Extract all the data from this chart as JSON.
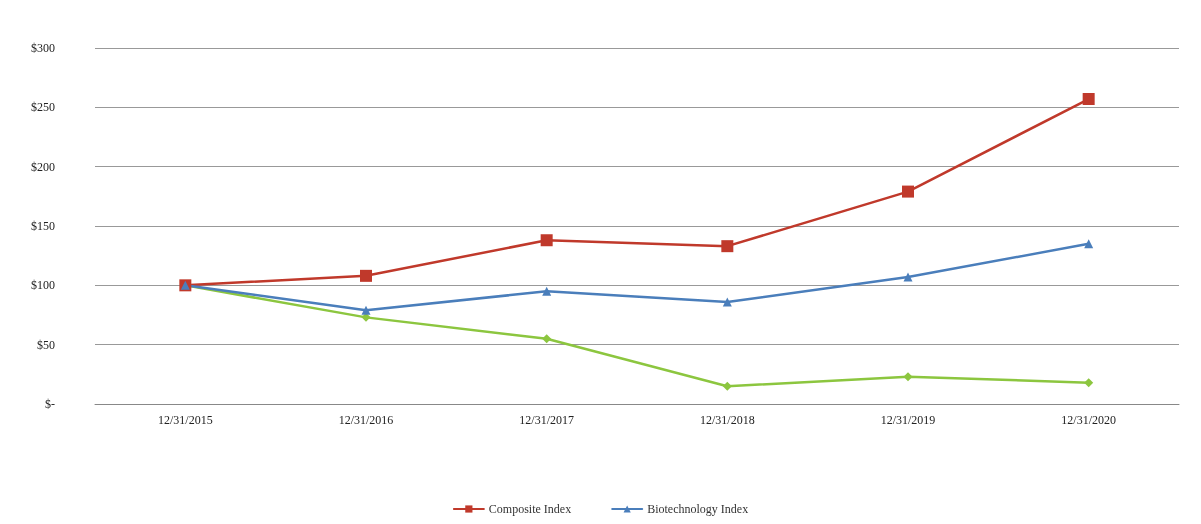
{
  "chart_data": {
    "type": "line",
    "categories": [
      "12/31/2015",
      "12/31/2016",
      "12/31/2017",
      "12/31/2018",
      "12/31/2019",
      "12/31/2020"
    ],
    "series": [
      {
        "color": "#8cc63f",
        "marker": "diamond",
        "values": [
          100,
          73,
          55,
          15,
          23,
          18
        ]
      },
      {
        "name": "Composite Index",
        "color": "#c0392b",
        "marker": "square",
        "values": [
          100,
          108,
          138,
          133,
          179,
          257
        ]
      },
      {
        "name": "Biotechnology Index",
        "color": "#4a7ebb",
        "marker": "triangle",
        "values": [
          100,
          79,
          95,
          86,
          107,
          135
        ]
      }
    ],
    "ylim": [
      0,
      300
    ],
    "yticks": [
      {
        "value": 0,
        "label": "$-"
      },
      {
        "value": 50,
        "label": "$50"
      },
      {
        "value": 100,
        "label": "$100"
      },
      {
        "value": 150,
        "label": "$150"
      },
      {
        "value": 200,
        "label": "$200"
      },
      {
        "value": 250,
        "label": "$250"
      },
      {
        "value": 300,
        "label": "$300"
      }
    ],
    "grid": "y",
    "legend": "bottom"
  }
}
